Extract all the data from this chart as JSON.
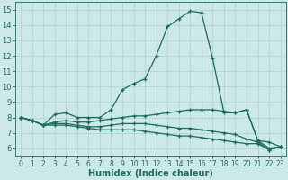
{
  "xlabel": "Humidex (Indice chaleur)",
  "bg_color": "#cce8e8",
  "grid_color": "#aed0d0",
  "line_color": "#1a6b5a",
  "xlim": [
    -0.5,
    23.5
  ],
  "ylim": [
    5.5,
    15.5
  ],
  "yticks": [
    6,
    7,
    8,
    9,
    10,
    11,
    12,
    13,
    14,
    15
  ],
  "xticks": [
    0,
    1,
    2,
    3,
    4,
    5,
    6,
    7,
    8,
    9,
    10,
    11,
    12,
    13,
    14,
    15,
    16,
    17,
    18,
    19,
    20,
    21,
    22,
    23
  ],
  "line1_x": [
    0,
    1,
    2,
    3,
    4,
    5,
    6,
    7,
    8,
    9,
    10,
    11,
    12,
    13,
    14,
    15,
    16,
    17,
    18,
    19,
    20,
    21,
    22,
    23
  ],
  "line1_y": [
    8.0,
    7.8,
    7.5,
    8.2,
    8.3,
    8.0,
    8.0,
    8.0,
    8.5,
    9.8,
    10.2,
    10.5,
    12.0,
    13.9,
    14.4,
    14.9,
    14.8,
    11.8,
    8.3,
    8.3,
    8.5,
    6.5,
    6.4,
    6.1
  ],
  "line2_x": [
    0,
    1,
    2,
    3,
    4,
    5,
    6,
    7,
    8,
    9,
    10,
    11,
    12,
    13,
    14,
    15,
    16,
    17,
    18,
    19,
    20,
    21,
    22,
    23
  ],
  "line2_y": [
    8.0,
    7.8,
    7.5,
    7.7,
    7.8,
    7.7,
    7.7,
    7.8,
    7.9,
    8.0,
    8.1,
    8.1,
    8.2,
    8.3,
    8.4,
    8.5,
    8.5,
    8.5,
    8.4,
    8.3,
    8.5,
    6.5,
    6.0,
    6.1
  ],
  "line3_x": [
    0,
    1,
    2,
    3,
    4,
    5,
    6,
    7,
    8,
    9,
    10,
    11,
    12,
    13,
    14,
    15,
    16,
    17,
    18,
    19,
    20,
    21,
    22,
    23
  ],
  "line3_y": [
    8.0,
    7.8,
    7.5,
    7.6,
    7.6,
    7.5,
    7.4,
    7.4,
    7.5,
    7.6,
    7.6,
    7.6,
    7.5,
    7.4,
    7.3,
    7.3,
    7.2,
    7.1,
    7.0,
    6.9,
    6.6,
    6.4,
    5.9,
    6.1
  ],
  "line4_x": [
    0,
    1,
    2,
    3,
    4,
    5,
    6,
    7,
    8,
    9,
    10,
    11,
    12,
    13,
    14,
    15,
    16,
    17,
    18,
    19,
    20,
    21,
    22,
    23
  ],
  "line4_y": [
    8.0,
    7.8,
    7.5,
    7.5,
    7.5,
    7.4,
    7.3,
    7.2,
    7.2,
    7.2,
    7.2,
    7.1,
    7.0,
    6.9,
    6.8,
    6.8,
    6.7,
    6.6,
    6.5,
    6.4,
    6.3,
    6.3,
    5.9,
    6.1
  ],
  "xlabel_fontsize": 7,
  "tick_fontsize": 5.5,
  "linewidth": 0.9,
  "markersize": 3.5
}
